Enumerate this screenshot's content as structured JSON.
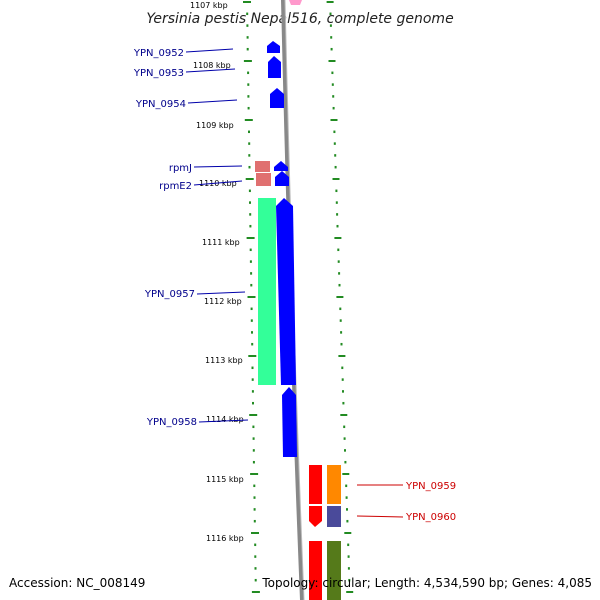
{
  "title": "Yersinia pestis Nepal516, complete genome",
  "footer": {
    "accession": "Accession: NC_008149",
    "topology": "Topology: circular; Length: 4,534,590 bp; Genes: 4,085"
  },
  "scale_labels": [
    "1107 kbp",
    "1108 kbp",
    "1109 kbp",
    "1110 kbp",
    "1111 kbp",
    "1112 kbp",
    "1113 kbp",
    "1114 kbp",
    "1115 kbp",
    "1116 kbp"
  ],
  "gene_labels": [
    "YPN_0952",
    "YPN_0953",
    "YPN_0954",
    "rpmJ",
    "rpmE2",
    "YPN_0957",
    "YPN_0958",
    "YPN_0959",
    "YPN_0960"
  ],
  "colors": {
    "forward_gene": "#0000ff",
    "rna_gene": "#e07070",
    "cds_track": "#33ff99",
    "reverse_gene": "#ff0000",
    "orange_gene": "#ff8800",
    "slate_gene": "#4a4a9a",
    "olive_gene": "#557a1a",
    "ticks": "#228b22",
    "backbone": "#888888",
    "pink": "#ff99cc"
  }
}
